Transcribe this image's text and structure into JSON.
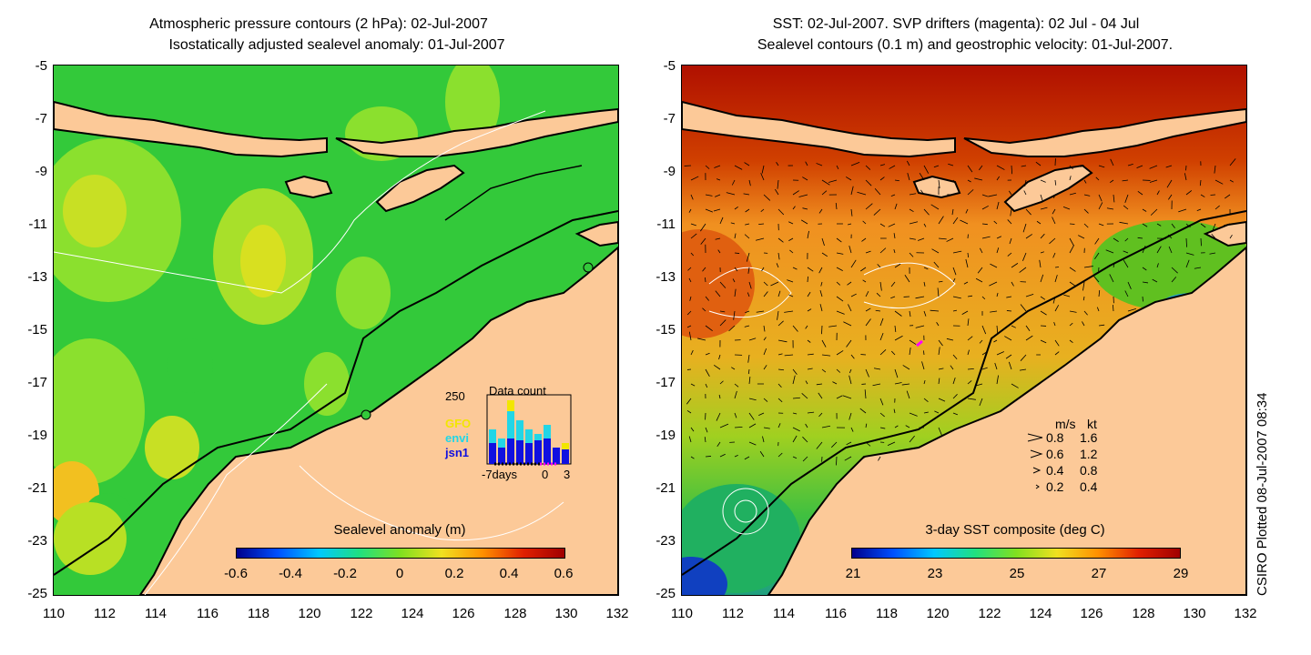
{
  "left_panel": {
    "title_line1": "Atmospheric pressure contours (2 hPa): 02-Jul-2007",
    "title_line2": "Isostatically adjusted sealevel anomaly: 01-Jul-2007",
    "colorbar": {
      "label": "Sealevel anomaly (m)",
      "ticks": [
        "-0.6",
        "-0.4",
        "-0.2",
        "0",
        "0.2",
        "0.4",
        "0.6"
      ]
    },
    "data_count": {
      "title": "Data count",
      "y_max_label": "250",
      "x_labels": [
        "-7days",
        "0",
        "3"
      ],
      "missions": [
        {
          "name": "GFO",
          "color": "#f2e600"
        },
        {
          "name": "envi",
          "color": "#22d6e6"
        },
        {
          "name": "jsn1",
          "color": "#1010e0"
        }
      ]
    }
  },
  "right_panel": {
    "title_line1": "SST: 02-Jul-2007. SVP drifters (magenta): 02 Jul - 04 Jul",
    "title_line2": "Sealevel contours (0.1 m) and geostrophic velocity: 01-Jul-2007.",
    "colorbar": {
      "label": "3-day SST composite (deg C)",
      "ticks": [
        "21",
        "23",
        "25",
        "27",
        "29"
      ]
    },
    "velocity_legend": {
      "header_ms": "m/s",
      "header_kt": "kt",
      "rows": [
        {
          "ms": "0.8",
          "kt": "1.6"
        },
        {
          "ms": "0.6",
          "kt": "1.2"
        },
        {
          "ms": "0.4",
          "kt": "0.8"
        },
        {
          "ms": "0.2",
          "kt": "0.4"
        }
      ]
    }
  },
  "map_extent": {
    "lon": [
      110,
      132
    ],
    "lat": [
      -25,
      -5
    ]
  },
  "y_axis_labels": [
    "-5",
    "-7",
    "-9",
    "-11",
    "-13",
    "-15",
    "-17",
    "-19",
    "-21",
    "-23",
    "-25"
  ],
  "x_axis_labels": [
    "110",
    "112",
    "114",
    "116",
    "118",
    "120",
    "122",
    "124",
    "126",
    "128",
    "130",
    "132"
  ],
  "side_text": "CSIRO Plotted 08-Jul-2007 08:34",
  "colors": {
    "land": "#fcc998",
    "ocean_sla": "#33c93a",
    "coast": "#000000",
    "drifter": "#ff00ff"
  }
}
